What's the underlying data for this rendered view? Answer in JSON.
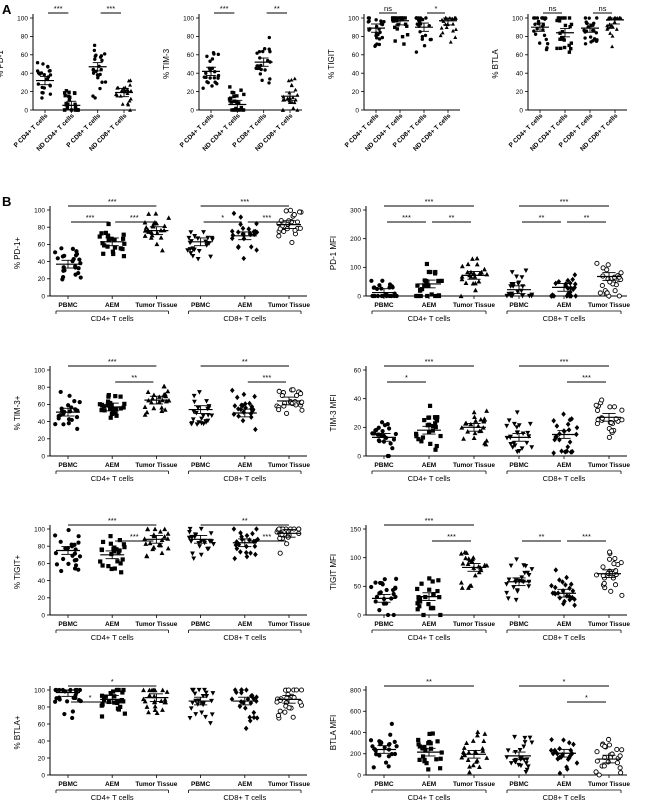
{
  "panel_labels": [
    "A",
    "B"
  ],
  "chart_data": [
    {
      "id": "A1",
      "type": "scatter",
      "ylabel": "% PD-1",
      "ylim": [
        0,
        100
      ],
      "yticks": [
        0,
        20,
        40,
        60,
        80,
        100
      ],
      "categories": [
        "P CD4+ T cells",
        "ND CD4+ T cells",
        "P CD8+ T cells",
        "ND CD8+ T cells"
      ],
      "groups": [],
      "means": [
        32,
        5,
        47,
        19
      ],
      "sig": [
        {
          "from": 0,
          "to": 1,
          "label": "***"
        },
        {
          "from": 2,
          "to": 3,
          "label": "***"
        }
      ]
    },
    {
      "id": "A2",
      "type": "scatter",
      "ylabel": "% TIM-3",
      "ylim": [
        0,
        100
      ],
      "yticks": [
        0,
        20,
        40,
        60,
        80,
        100
      ],
      "categories": [
        "P CD4+ T cells",
        "ND CD4+ T cells",
        "P CD8+ T cells",
        "ND CD8+ T cells"
      ],
      "groups": [],
      "means": [
        42,
        6,
        52,
        15
      ],
      "sig": [
        {
          "from": 0,
          "to": 1,
          "label": "***"
        },
        {
          "from": 2,
          "to": 3,
          "label": "**"
        }
      ]
    },
    {
      "id": "A3",
      "type": "scatter",
      "ylabel": "% TIGIT",
      "ylim": [
        0,
        100
      ],
      "yticks": [
        0,
        20,
        40,
        60,
        80,
        100
      ],
      "categories": [
        "P CD4+ T cells",
        "ND CD4+ T cells",
        "P CD8+ T cells",
        "ND CD8+ T cells"
      ],
      "groups": [],
      "means": [
        89,
        97,
        90,
        97
      ],
      "sig": [
        {
          "from": 0,
          "to": 1,
          "label": "ns"
        },
        {
          "from": 2,
          "to": 3,
          "label": "*"
        }
      ]
    },
    {
      "id": "A4",
      "type": "scatter",
      "ylabel": "% BTLA",
      "ylim": [
        0,
        100
      ],
      "yticks": [
        0,
        20,
        40,
        60,
        80,
        100
      ],
      "categories": [
        "P CD4+ T cells",
        "ND CD4+ T cells",
        "P CD8+ T cells",
        "ND CD8+ T cells"
      ],
      "groups": [],
      "means": [
        90,
        84,
        89,
        98
      ],
      "sig": [
        {
          "from": 0,
          "to": 1,
          "label": "ns"
        },
        {
          "from": 2,
          "to": 3,
          "label": "ns"
        }
      ]
    },
    {
      "id": "B1",
      "type": "scatter",
      "ylabel": "% PD-1+",
      "ylim": [
        0,
        100
      ],
      "yticks": [
        0,
        20,
        40,
        60,
        80,
        100
      ],
      "categories": [
        "PBMC",
        "AEM",
        "Tumor Tissue",
        "PBMC",
        "AEM",
        "Tumor Tissue"
      ],
      "groups": [
        "CD4+ T cells",
        "CD8+ T cells"
      ],
      "means": [
        37,
        63,
        76,
        63,
        70,
        83
      ],
      "sig": [
        {
          "from": 0,
          "to": 2,
          "label": "***"
        },
        {
          "from": 0,
          "to": 1,
          "label": "***"
        },
        {
          "from": 1,
          "to": 2,
          "label": "***"
        },
        {
          "from": 3,
          "to": 5,
          "label": "***"
        },
        {
          "from": 3,
          "to": 4,
          "label": "*"
        },
        {
          "from": 4,
          "to": 5,
          "label": "***"
        }
      ]
    },
    {
      "id": "B2",
      "type": "scatter",
      "ylabel": "PD-1 MFI",
      "ylim": [
        0,
        300
      ],
      "yticks": [
        0,
        100,
        200,
        300
      ],
      "categories": [
        "PBMC",
        "AEM",
        "Tumor Tissue",
        "PBMC",
        "AEM",
        "Tumor Tissue"
      ],
      "groups": [
        "CD4+ T cells",
        "CD8+ T cells"
      ],
      "means": [
        12,
        42,
        72,
        22,
        30,
        68
      ],
      "sig": [
        {
          "from": 0,
          "to": 2,
          "label": "***"
        },
        {
          "from": 0,
          "to": 1,
          "label": "***"
        },
        {
          "from": 1,
          "to": 2,
          "label": "**"
        },
        {
          "from": 3,
          "to": 5,
          "label": "***"
        },
        {
          "from": 3,
          "to": 4,
          "label": "**"
        },
        {
          "from": 4,
          "to": 5,
          "label": "**"
        }
      ]
    },
    {
      "id": "B3",
      "type": "scatter",
      "ylabel": "% TIM-3+",
      "ylim": [
        0,
        100
      ],
      "yticks": [
        0,
        20,
        40,
        60,
        80,
        100
      ],
      "categories": [
        "PBMC",
        "AEM",
        "Tumor Tissue",
        "PBMC",
        "AEM",
        "Tumor Tissue"
      ],
      "groups": [
        "CD4+ T cells",
        "CD8+ T cells"
      ],
      "means": [
        51,
        57,
        65,
        54,
        50,
        64
      ],
      "sig": [
        {
          "from": 0,
          "to": 2,
          "label": "***"
        },
        {
          "from": 1,
          "to": 2,
          "label": "**"
        },
        {
          "from": 3,
          "to": 5,
          "label": "**"
        },
        {
          "from": 4,
          "to": 5,
          "label": "***"
        }
      ]
    },
    {
      "id": "B4",
      "type": "scatter",
      "ylabel": "TIM-3 MFI",
      "ylim": [
        0,
        60
      ],
      "yticks": [
        0,
        20,
        40,
        60
      ],
      "categories": [
        "PBMC",
        "AEM",
        "Tumor Tissue",
        "PBMC",
        "AEM",
        "Tumor Tissue"
      ],
      "groups": [
        "CD4+ T cells",
        "CD8+ T cells"
      ],
      "means": [
        13,
        18,
        20,
        13,
        15,
        27
      ],
      "sig": [
        {
          "from": 0,
          "to": 2,
          "label": "***"
        },
        {
          "from": 0,
          "to": 1,
          "label": "*"
        },
        {
          "from": 3,
          "to": 5,
          "label": "***"
        },
        {
          "from": 4,
          "to": 5,
          "label": "***"
        }
      ]
    },
    {
      "id": "B5",
      "type": "scatter",
      "ylabel": "% TIGIT+",
      "ylim": [
        0,
        100
      ],
      "yticks": [
        0,
        20,
        40,
        60,
        80,
        100
      ],
      "categories": [
        "PBMC",
        "AEM",
        "Tumor Tissue",
        "PBMC",
        "AEM",
        "Tumor Tissue"
      ],
      "groups": [
        "CD4+ T cells",
        "CD8+ T cells"
      ],
      "means": [
        75,
        70,
        88,
        88,
        84,
        95
      ],
      "sig": [
        {
          "from": 0,
          "to": 2,
          "label": "***"
        },
        {
          "from": 1,
          "to": 2,
          "label": "***"
        },
        {
          "from": 3,
          "to": 5,
          "label": "**"
        },
        {
          "from": 4,
          "to": 5,
          "label": "***"
        }
      ]
    },
    {
      "id": "B6",
      "type": "scatter",
      "ylabel": "TIGIT MFI",
      "ylim": [
        0,
        150
      ],
      "yticks": [
        0,
        50,
        100,
        150
      ],
      "categories": [
        "PBMC",
        "AEM",
        "Tumor Tissue",
        "PBMC",
        "AEM",
        "Tumor Tissue"
      ],
      "groups": [
        "CD4+ T cells",
        "CD8+ T cells"
      ],
      "means": [
        29,
        32,
        83,
        58,
        38,
        72
      ],
      "sig": [
        {
          "from": 0,
          "to": 2,
          "label": "***"
        },
        {
          "from": 1,
          "to": 2,
          "label": "***"
        },
        {
          "from": 3,
          "to": 4,
          "label": "**"
        },
        {
          "from": 4,
          "to": 5,
          "label": "***"
        }
      ]
    },
    {
      "id": "B7",
      "type": "scatter",
      "ylabel": "% BTLA+",
      "ylim": [
        0,
        100
      ],
      "yticks": [
        0,
        20,
        40,
        60,
        80,
        100
      ],
      "categories": [
        "PBMC",
        "AEM",
        "Tumor Tissue",
        "PBMC",
        "AEM",
        "Tumor Tissue"
      ],
      "groups": [
        "CD4+ T cells",
        "CD8+ T cells"
      ],
      "means": [
        97,
        89,
        91,
        87,
        87,
        89
      ],
      "sig": [
        {
          "from": 0,
          "to": 2,
          "label": "*"
        },
        {
          "from": 0,
          "to": 1,
          "label": "*"
        }
      ]
    },
    {
      "id": "B8",
      "type": "scatter",
      "ylabel": "BTLA MFI",
      "ylim": [
        0,
        800
      ],
      "yticks": [
        0,
        200,
        400,
        600,
        800
      ],
      "categories": [
        "PBMC",
        "AEM",
        "Tumor Tissue",
        "PBMC",
        "AEM",
        "Tumor Tissue"
      ],
      "groups": [
        "CD4+ T cells",
        "CD8+ T cells"
      ],
      "means": [
        240,
        215,
        195,
        180,
        205,
        150
      ],
      "sig": [
        {
          "from": 0,
          "to": 2,
          "label": "**"
        },
        {
          "from": 3,
          "to": 5,
          "label": "*"
        },
        {
          "from": 4,
          "to": 5,
          "label": "*"
        }
      ]
    }
  ]
}
